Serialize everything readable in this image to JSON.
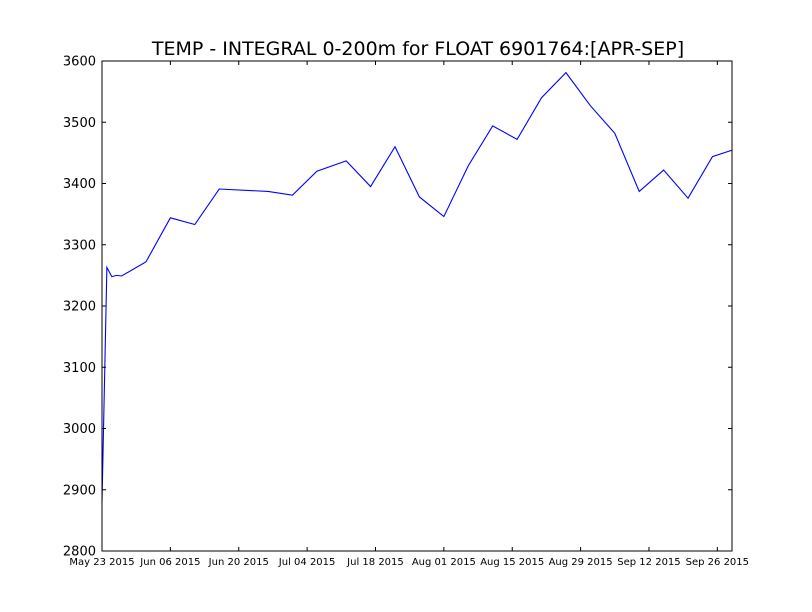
{
  "chart_data": {
    "type": "line",
    "title": "TEMP - INTEGRAL 0-200m for FLOAT 6901764:[APR-SEP]",
    "xlabel": "",
    "ylabel": "",
    "xlim": [
      "2015-05-23",
      "2015-09-29"
    ],
    "ylim": [
      2800,
      3600
    ],
    "grid": false,
    "legend": "none",
    "line_color": "#0000ff",
    "x_ticks": [
      {
        "date": "2015-05-23",
        "label": "May 23 2015"
      },
      {
        "date": "2015-06-06",
        "label": "Jun 06 2015"
      },
      {
        "date": "2015-06-20",
        "label": "Jun 20 2015"
      },
      {
        "date": "2015-07-04",
        "label": "Jul 04 2015"
      },
      {
        "date": "2015-07-18",
        "label": "Jul 18 2015"
      },
      {
        "date": "2015-08-01",
        "label": "Aug 01 2015"
      },
      {
        "date": "2015-08-15",
        "label": "Aug 15 2015"
      },
      {
        "date": "2015-08-29",
        "label": "Aug 29 2015"
      },
      {
        "date": "2015-09-12",
        "label": "Sep 12 2015"
      },
      {
        "date": "2015-09-26",
        "label": "Sep 26 2015"
      }
    ],
    "y_ticks": [
      {
        "value": 2800,
        "label": "2800"
      },
      {
        "value": 2900,
        "label": "2900"
      },
      {
        "value": 3000,
        "label": "3000"
      },
      {
        "value": 3100,
        "label": "3100"
      },
      {
        "value": 3200,
        "label": "3200"
      },
      {
        "value": 3300,
        "label": "3300"
      },
      {
        "value": 3400,
        "label": "3400"
      },
      {
        "value": 3500,
        "label": "3500"
      },
      {
        "value": 3600,
        "label": "3600"
      }
    ],
    "series": [
      {
        "points": [
          {
            "x": "2015-05-23",
            "y": 2880
          },
          {
            "x": "2015-05-24",
            "y": 3263
          },
          {
            "x": "2015-05-25",
            "y": 3248
          },
          {
            "x": "2015-05-26",
            "y": 3250
          },
          {
            "x": "2015-05-27",
            "y": 3249
          },
          {
            "x": "2015-06-01",
            "y": 3272
          },
          {
            "x": "2015-06-06",
            "y": 3344
          },
          {
            "x": "2015-06-11",
            "y": 3333
          },
          {
            "x": "2015-06-16",
            "y": 3391
          },
          {
            "x": "2015-06-26",
            "y": 3387
          },
          {
            "x": "2015-07-01",
            "y": 3381
          },
          {
            "x": "2015-07-06",
            "y": 3420
          },
          {
            "x": "2015-07-12",
            "y": 3437
          },
          {
            "x": "2015-07-17",
            "y": 3395
          },
          {
            "x": "2015-07-22",
            "y": 3460
          },
          {
            "x": "2015-07-27",
            "y": 3378
          },
          {
            "x": "2015-08-01",
            "y": 3346
          },
          {
            "x": "2015-08-06",
            "y": 3429
          },
          {
            "x": "2015-08-11",
            "y": 3494
          },
          {
            "x": "2015-08-16",
            "y": 3472
          },
          {
            "x": "2015-08-21",
            "y": 3540
          },
          {
            "x": "2015-08-26",
            "y": 3581
          },
          {
            "x": "2015-08-31",
            "y": 3527
          },
          {
            "x": "2015-09-05",
            "y": 3482
          },
          {
            "x": "2015-09-10",
            "y": 3387
          },
          {
            "x": "2015-09-15",
            "y": 3422
          },
          {
            "x": "2015-09-20",
            "y": 3376
          },
          {
            "x": "2015-09-25",
            "y": 3444
          },
          {
            "x": "2015-09-30",
            "y": 3457
          }
        ]
      }
    ]
  }
}
